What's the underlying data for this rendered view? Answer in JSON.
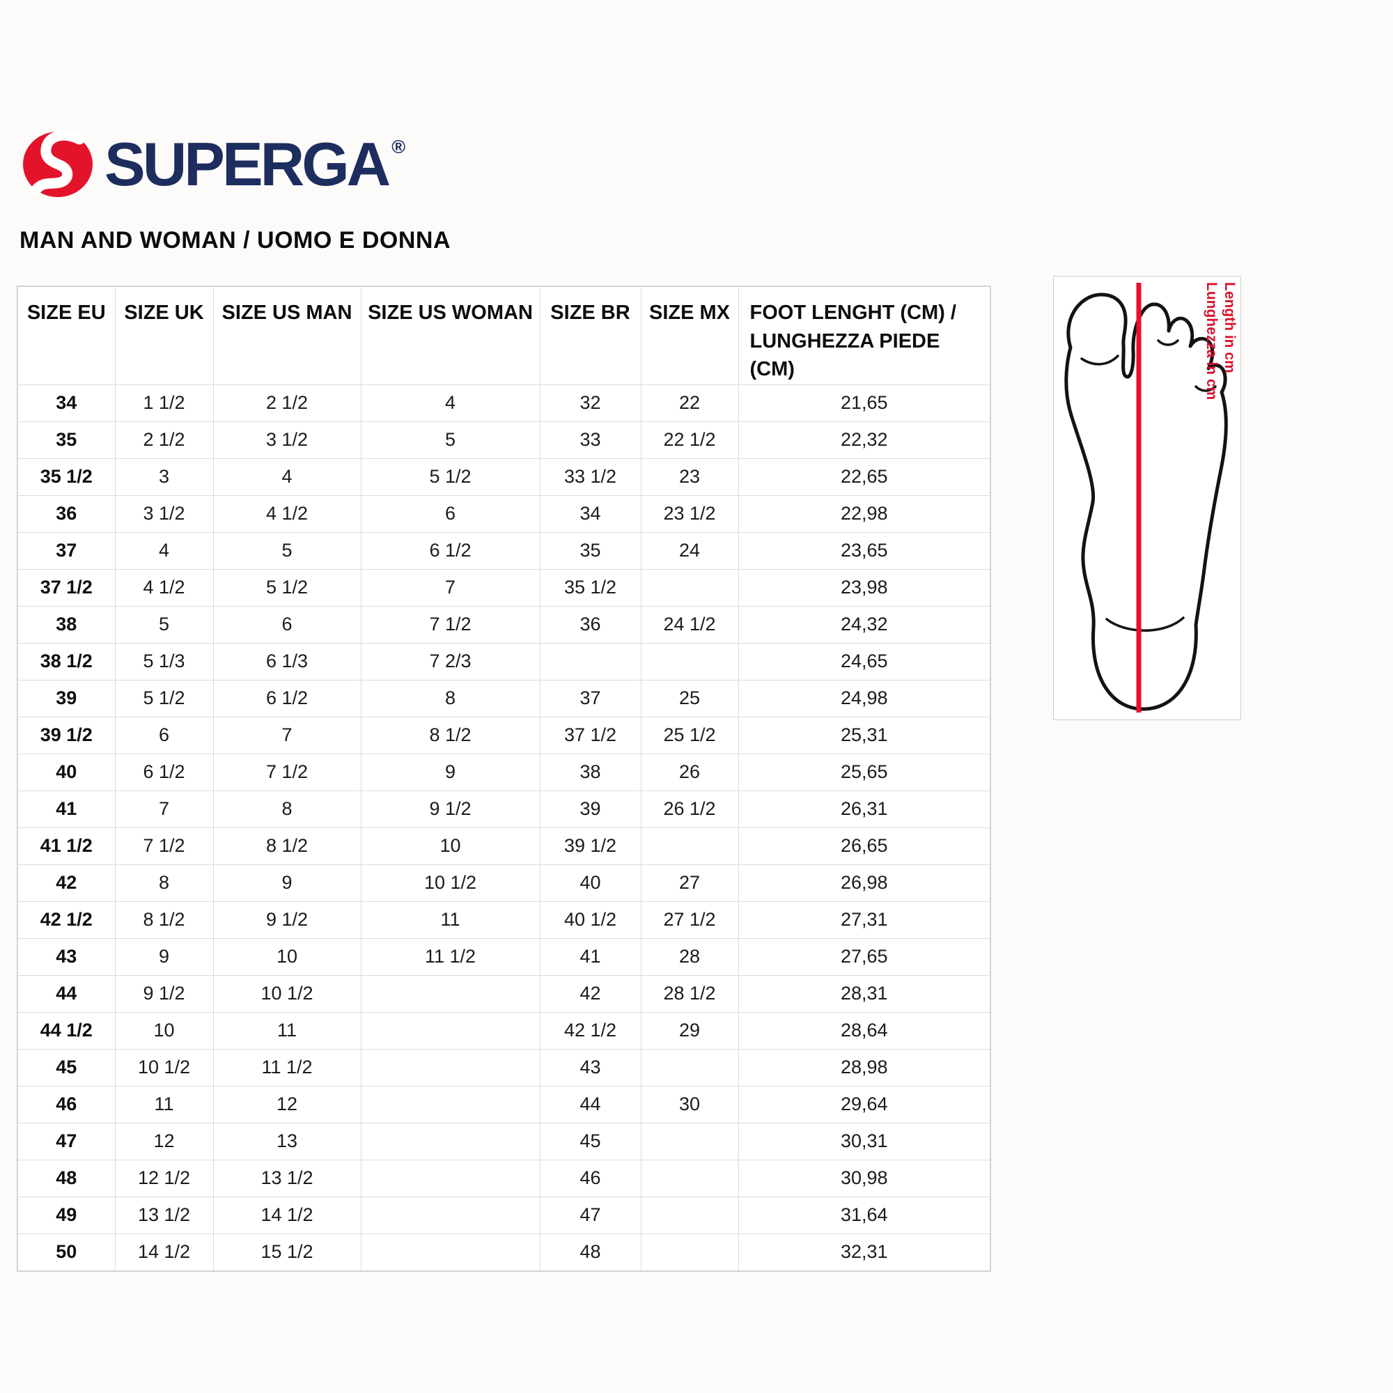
{
  "logo": {
    "brand": "SUPERGA",
    "registered": "®"
  },
  "page": {
    "heading": "MAN AND WOMAN / UOMO E DONNA"
  },
  "colors": {
    "brand_navy": "#1d2d5e",
    "brand_red": "#e3132b",
    "line_red": "#e8112d",
    "label_red": "#d8142e",
    "border": "#dbdbdb"
  },
  "table": {
    "headers": [
      "SIZE EU",
      "SIZE UK",
      "SIZE US MAN",
      "SIZE US WOMAN",
      "SIZE BR",
      "SIZE MX"
    ],
    "foot_header": {
      "line1": "FOOT LENGHT (CM) /",
      "line2": "LUNGHEZZA PIEDE (CM)"
    },
    "rows": [
      [
        "34",
        "1 1/2",
        "2 1/2",
        "4",
        "32",
        "22",
        "21,65"
      ],
      [
        "35",
        "2 1/2",
        "3 1/2",
        "5",
        "33",
        "22 1/2",
        "22,32"
      ],
      [
        "35 1/2",
        "3",
        "4",
        "5 1/2",
        "33 1/2",
        "23",
        "22,65"
      ],
      [
        "36",
        "3 1/2",
        "4 1/2",
        "6",
        "34",
        "23 1/2",
        "22,98"
      ],
      [
        "37",
        "4",
        "5",
        "6 1/2",
        "35",
        "24",
        "23,65"
      ],
      [
        "37 1/2",
        "4 1/2",
        "5 1/2",
        "7",
        "35 1/2",
        "",
        "23,98"
      ],
      [
        "38",
        "5",
        "6",
        "7 1/2",
        "36",
        "24 1/2",
        "24,32"
      ],
      [
        "38 1/2",
        "5 1/3",
        "6 1/3",
        "7 2/3",
        "",
        "",
        "24,65"
      ],
      [
        "39",
        "5 1/2",
        "6 1/2",
        "8",
        "37",
        "25",
        "24,98"
      ],
      [
        "39 1/2",
        "6",
        "7",
        "8 1/2",
        "37 1/2",
        "25 1/2",
        "25,31"
      ],
      [
        "40",
        "6 1/2",
        "7 1/2",
        "9",
        "38",
        "26",
        "25,65"
      ],
      [
        "41",
        "7",
        "8",
        "9 1/2",
        "39",
        "26 1/2",
        "26,31"
      ],
      [
        "41 1/2",
        "7 1/2",
        "8 1/2",
        "10",
        "39 1/2",
        "",
        "26,65"
      ],
      [
        "42",
        "8",
        "9",
        "10 1/2",
        "40",
        "27",
        "26,98"
      ],
      [
        "42 1/2",
        "8 1/2",
        "9 1/2",
        "11",
        "40 1/2",
        "27 1/2",
        "27,31"
      ],
      [
        "43",
        "9",
        "10",
        "11 1/2",
        "41",
        "28",
        "27,65"
      ],
      [
        "44",
        "9 1/2",
        "10 1/2",
        "",
        "42",
        "28 1/2",
        "28,31"
      ],
      [
        "44 1/2",
        "10",
        "11",
        "",
        "42 1/2",
        "29",
        "28,64"
      ],
      [
        "45",
        "10 1/2",
        "11 1/2",
        "",
        "43",
        "",
        "28,98"
      ],
      [
        "46",
        "11",
        "12",
        "",
        "44",
        "30",
        "29,64"
      ],
      [
        "47",
        "12",
        "13",
        "",
        "45",
        "",
        "30,31"
      ],
      [
        "48",
        "12 1/2",
        "13 1/2",
        "",
        "46",
        "",
        "30,98"
      ],
      [
        "49",
        "13 1/2",
        "14 1/2",
        "",
        "47",
        "",
        "31,64"
      ],
      [
        "50",
        "14 1/2",
        "15 1/2",
        "",
        "48",
        "",
        "32,31"
      ]
    ]
  },
  "foot_diagram": {
    "label_en": "Length in cm",
    "label_it": "Lunghezza in cm"
  }
}
